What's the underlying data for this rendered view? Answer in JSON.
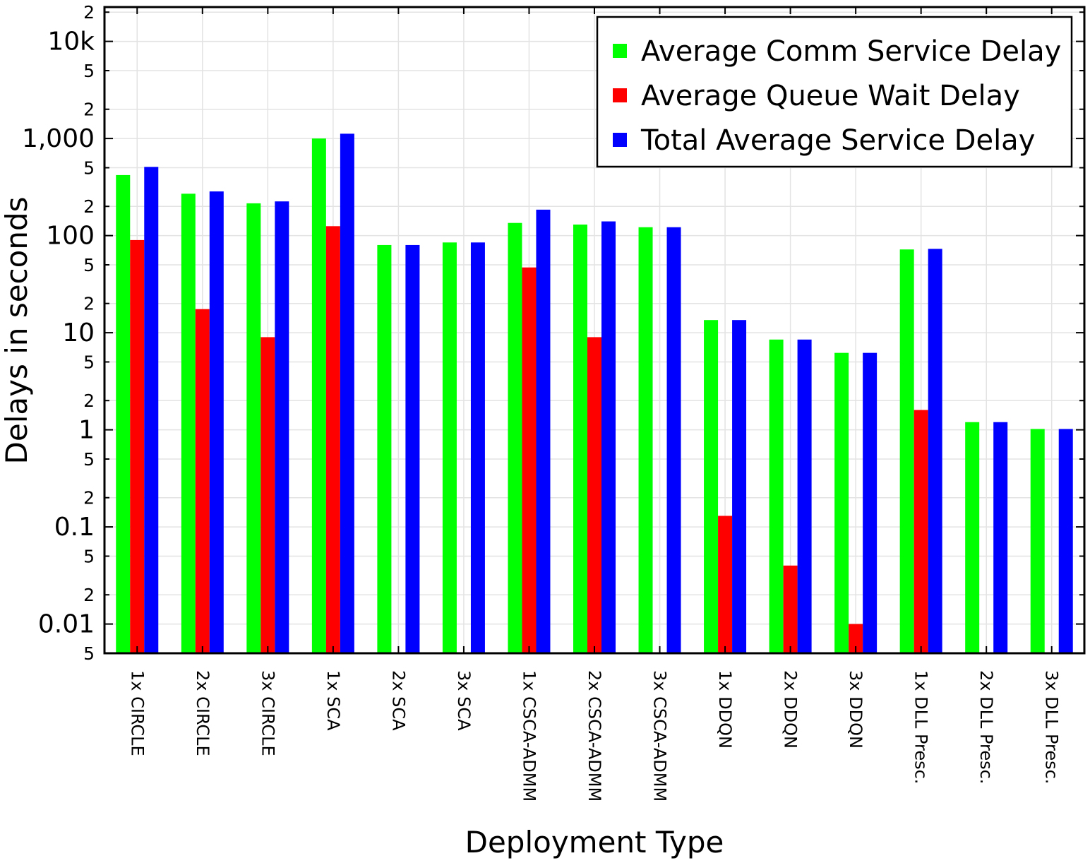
{
  "chart_data": {
    "type": "bar",
    "xlabel": "Deployment Type",
    "ylabel": "Delays in seconds",
    "yscale": "log",
    "ylim": [
      0.005,
      20000
    ],
    "grid": true,
    "legend_position": "top-right",
    "categories": [
      "1x CIRCLE",
      "2x CIRCLE",
      "3x CIRCLE",
      "1x SCA",
      "2x SCA",
      "3x SCA",
      "1x CSCA-ADMM",
      "2x CSCA-ADMM",
      "3x CSCA-ADMM",
      "1x DDQN",
      "2x DDQN",
      "3x DDQN",
      "1x DLL Presc.",
      "2x DLL Presc.",
      "3x DLL Presc."
    ],
    "series": [
      {
        "name": "Average Comm Service Delay",
        "color": "#00ff00",
        "values": [
          420,
          270,
          215,
          1000,
          80,
          85,
          135,
          130,
          122,
          13.5,
          8.5,
          6.2,
          72,
          1.2,
          1.02
        ]
      },
      {
        "name": "Average Queue Wait Delay",
        "color": "#ff0000",
        "values": [
          90,
          17.5,
          9.0,
          125,
          null,
          null,
          47,
          9.0,
          null,
          0.13,
          0.04,
          0.01,
          1.6,
          null,
          null
        ]
      },
      {
        "name": "Total Average Service Delay",
        "color": "#0000ff",
        "values": [
          510,
          285,
          225,
          1120,
          80,
          85,
          185,
          140,
          122,
          13.5,
          8.5,
          6.2,
          73,
          1.2,
          1.02
        ]
      }
    ],
    "ytick_labels": {
      "major": [
        "0.01",
        "0.1",
        "1",
        "10",
        "100",
        "1,000",
        "10k"
      ],
      "minor": [
        "5",
        "2",
        "5",
        "2",
        "5",
        "2",
        "5",
        "2",
        "5",
        "2",
        "5",
        "2",
        "5",
        "2"
      ]
    }
  }
}
